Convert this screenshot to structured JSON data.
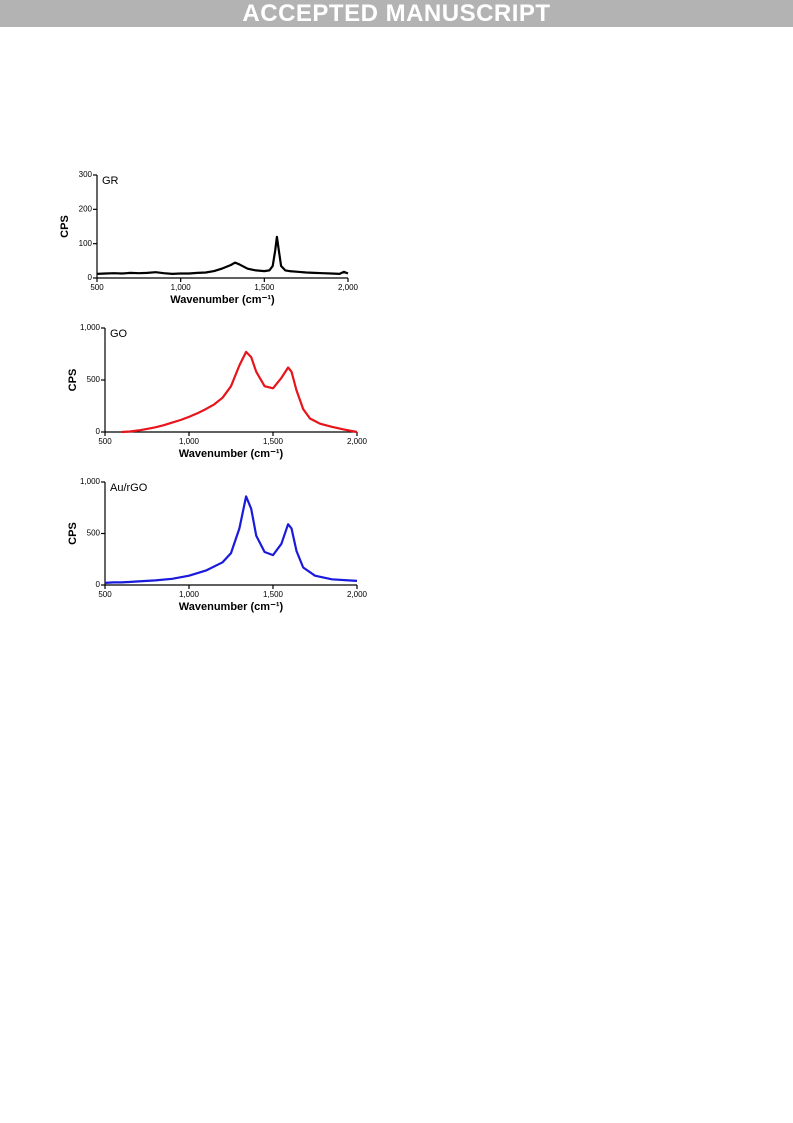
{
  "header": {
    "banner": "ACCEPTED MANUSCRIPT"
  },
  "chart_data": [
    {
      "type": "line",
      "xlabel": "Wavenumber (cm⁻¹)",
      "ylabel": "CPS",
      "xlim": [
        500,
        2000
      ],
      "ylim": [
        0,
        300
      ],
      "xticks": [
        500,
        {
          "value": 1000,
          "label": "1,000"
        },
        {
          "value": 1500,
          "label": "1,500"
        },
        {
          "value": 2000,
          "label": "2,000"
        }
      ],
      "yticks": [
        0,
        100,
        200,
        300
      ],
      "x": [
        500,
        550,
        600,
        650,
        700,
        750,
        800,
        850,
        900,
        950,
        1000,
        1050,
        1100,
        1150,
        1200,
        1250,
        1300,
        1325,
        1350,
        1400,
        1450,
        1500,
        1530,
        1550,
        1565,
        1575,
        1585,
        1600,
        1625,
        1650,
        1700,
        1750,
        1800,
        1850,
        1900,
        1950,
        1975,
        2000
      ],
      "series": [
        {
          "name": "GR",
          "color": "#000000",
          "values": [
            12,
            13,
            14,
            13,
            15,
            14,
            15,
            17,
            14,
            12,
            13,
            13,
            15,
            16,
            20,
            28,
            38,
            45,
            40,
            27,
            22,
            20,
            22,
            35,
            80,
            120,
            85,
            35,
            22,
            20,
            18,
            16,
            15,
            14,
            13,
            12,
            18,
            13
          ]
        }
      ]
    },
    {
      "type": "line",
      "xlabel": "Wavenumber (cm⁻¹)",
      "ylabel": "CPS",
      "xlim": [
        500,
        2000
      ],
      "ylim": [
        0,
        1000
      ],
      "xticks": [
        500,
        {
          "value": 1000,
          "label": "1,000"
        },
        {
          "value": 1500,
          "label": "1,500"
        },
        {
          "value": 2000,
          "label": "2,000"
        }
      ],
      "yticks": [
        0,
        500,
        {
          "value": 1000,
          "label": "1,000"
        }
      ],
      "x": [
        600,
        650,
        700,
        750,
        800,
        850,
        900,
        950,
        1000,
        1050,
        1100,
        1150,
        1200,
        1250,
        1300,
        1340,
        1370,
        1400,
        1450,
        1500,
        1550,
        1590,
        1610,
        1640,
        1680,
        1720,
        1780,
        1850,
        1920,
        2000
      ],
      "series": [
        {
          "name": "GO",
          "color": "#e8141b",
          "values": [
            0,
            5,
            15,
            30,
            45,
            65,
            90,
            115,
            145,
            180,
            220,
            265,
            330,
            440,
            640,
            770,
            720,
            580,
            440,
            420,
            520,
            620,
            580,
            400,
            220,
            130,
            80,
            50,
            25,
            0
          ]
        }
      ]
    },
    {
      "type": "line",
      "xlabel": "Wavenumber (cm⁻¹)",
      "ylabel": "CPS",
      "xlim": [
        500,
        2000
      ],
      "ylim": [
        0,
        1000
      ],
      "xticks": [
        500,
        {
          "value": 1000,
          "label": "1,000"
        },
        {
          "value": 1500,
          "label": "1,500"
        },
        {
          "value": 2000,
          "label": "2,000"
        }
      ],
      "yticks": [
        0,
        500,
        {
          "value": 1000,
          "label": "1,000"
        }
      ],
      "x": [
        500,
        550,
        600,
        700,
        800,
        900,
        1000,
        1100,
        1200,
        1250,
        1300,
        1340,
        1370,
        1400,
        1450,
        1500,
        1550,
        1590,
        1610,
        1640,
        1680,
        1750,
        1850,
        1950,
        2000
      ],
      "series": [
        {
          "name": "Au/rGO",
          "color": "#1a1adc",
          "values": [
            20,
            25,
            25,
            35,
            45,
            60,
            90,
            140,
            220,
            310,
            550,
            860,
            740,
            480,
            320,
            290,
            400,
            590,
            550,
            330,
            170,
            90,
            55,
            45,
            40
          ]
        }
      ]
    }
  ]
}
